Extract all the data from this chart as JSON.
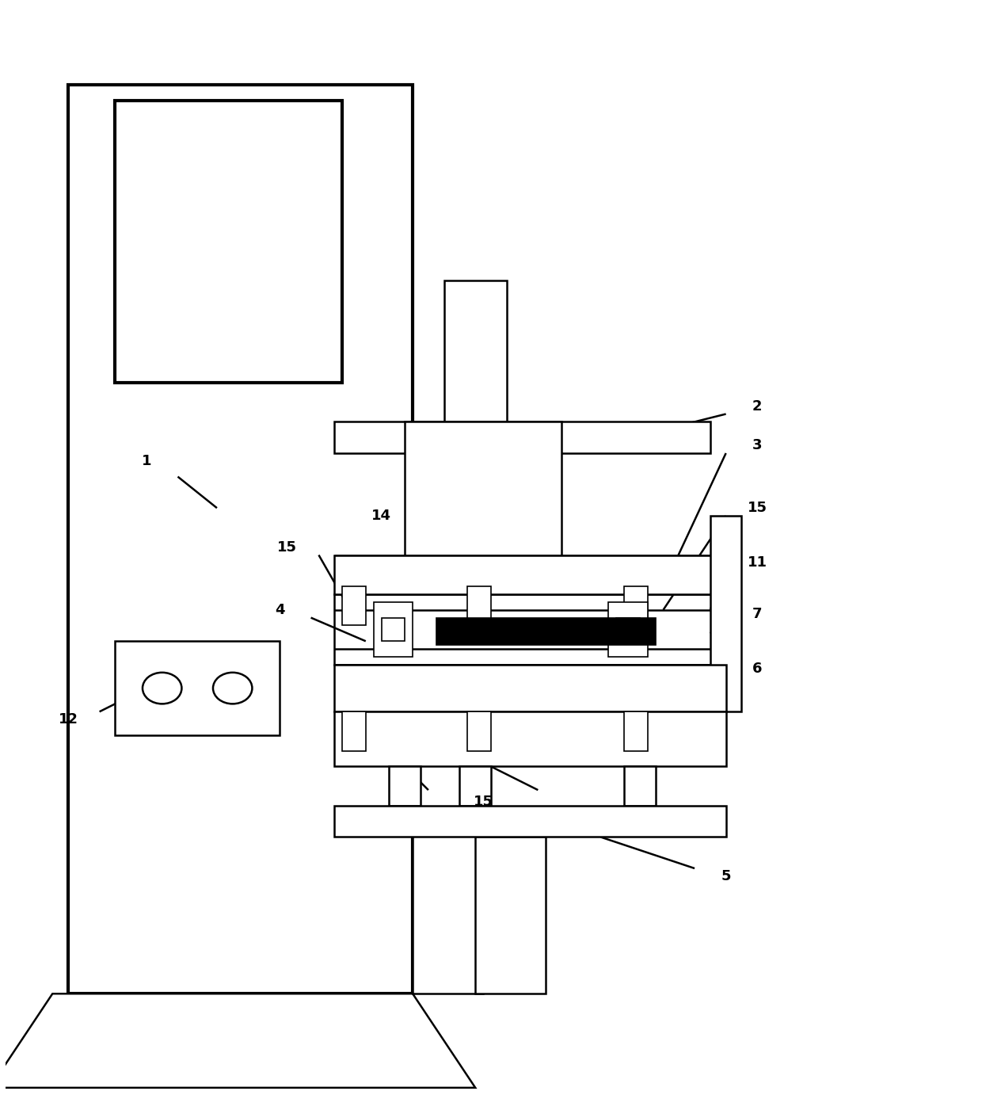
{
  "figure_width": 12.4,
  "figure_height": 14.01,
  "bg_color": "#ffffff",
  "lw": 1.8,
  "lw_thick": 3.0,
  "lw_thin": 1.2
}
